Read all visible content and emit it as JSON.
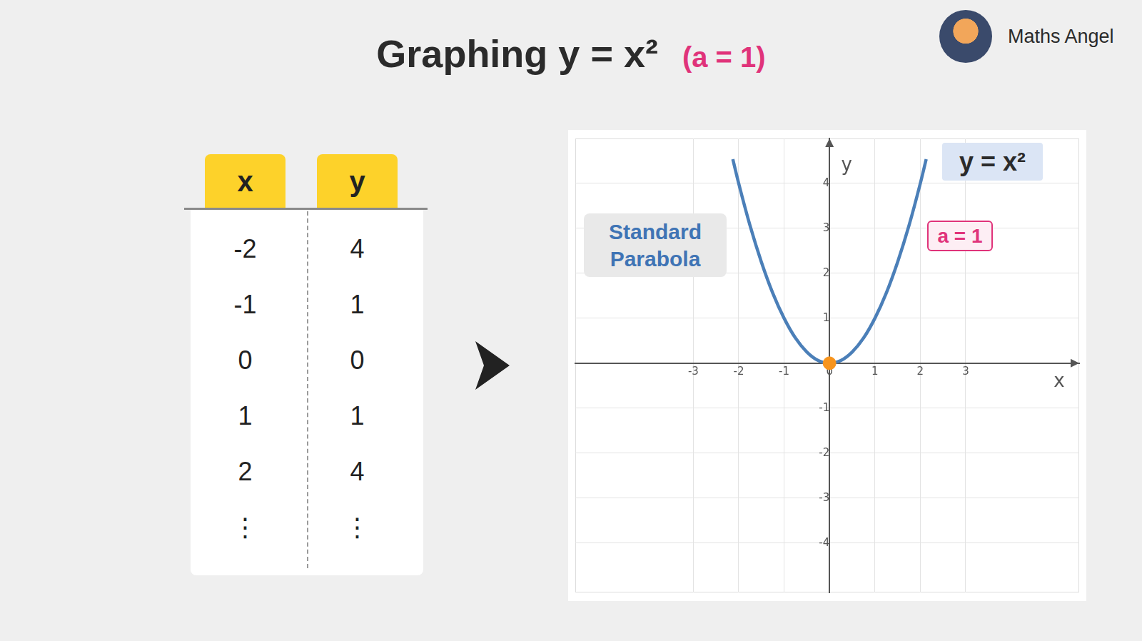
{
  "header": {
    "title": "Graphing y = x²",
    "subtitle": "(a = 1)",
    "brand": "Maths Angel"
  },
  "table": {
    "columns": [
      "x",
      "y"
    ],
    "rows": [
      [
        -2,
        4
      ],
      [
        -1,
        1
      ],
      [
        0,
        0
      ],
      [
        1,
        1
      ],
      [
        2,
        4
      ],
      [
        "⋮",
        "⋮"
      ]
    ]
  },
  "chart_data": {
    "type": "line",
    "x_label": "x",
    "y_label": "y",
    "annotations": [
      "Standard Parabola",
      "a = 1"
    ],
    "xlim": [
      -5.6,
      5.5
    ],
    "ylim": [
      -5.1,
      5.0
    ],
    "xticks": [
      -3,
      -2,
      -1,
      0,
      1,
      2,
      3
    ],
    "yticks": [
      -4,
      -3,
      -2,
      -1,
      1,
      2,
      3,
      4
    ],
    "grid": true,
    "series": [
      {
        "name": "y = x²",
        "color": "#4b7fb8",
        "line_style": "solid",
        "x": [
          -2.13,
          -2,
          -1.75,
          -1.5,
          -1.25,
          -1,
          -0.75,
          -0.5,
          -0.25,
          0,
          0.25,
          0.5,
          0.75,
          1,
          1.25,
          1.5,
          1.75,
          2,
          2.13
        ],
        "values": [
          4.54,
          4,
          3.06,
          2.25,
          1.56,
          1,
          0.56,
          0.25,
          0.06,
          0,
          0.06,
          0.25,
          0.56,
          1,
          1.56,
          2.25,
          3.06,
          4,
          4.54
        ]
      }
    ],
    "points": [
      {
        "x": 0,
        "y": 0,
        "color": "#f7941d",
        "marker": "circle"
      }
    ]
  }
}
